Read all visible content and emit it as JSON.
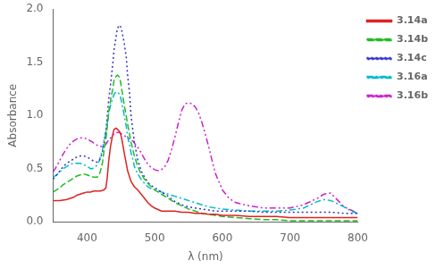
{
  "chart_data": {
    "type": "line",
    "xlabel": "λ (nm)",
    "ylabel": "Absorbance",
    "xlim": [
      350,
      800
    ],
    "ylim": [
      0.0,
      2.0
    ],
    "xticks": [
      400,
      500,
      600,
      700,
      800
    ],
    "yticks": [
      {
        "value": 0.0,
        "label": "0.0"
      },
      0.5,
      {
        "value": 1.0,
        "label": "1.0"
      },
      1.5,
      {
        "value": 2.0,
        "label": "2.0"
      }
    ],
    "grid": false,
    "legend": "upper right",
    "series": [
      {
        "name": "3.14a",
        "color": "#dd2222",
        "line_style": "solid",
        "x": [
          350,
          360,
          370,
          375,
          380,
          385,
          390,
          395,
          400,
          405,
          410,
          415,
          420,
          425,
          428,
          430,
          432,
          435,
          438,
          440,
          443,
          445,
          448,
          450,
          452,
          455,
          460,
          465,
          470,
          475,
          480,
          485,
          490,
          495,
          500,
          510,
          520,
          530,
          540,
          550,
          560,
          570,
          580,
          590,
          600,
          620,
          640,
          660,
          680,
          700,
          720,
          740,
          760,
          780,
          800
        ],
        "values": [
          0.2,
          0.2,
          0.21,
          0.22,
          0.23,
          0.25,
          0.26,
          0.27,
          0.28,
          0.28,
          0.29,
          0.29,
          0.29,
          0.3,
          0.32,
          0.42,
          0.57,
          0.72,
          0.82,
          0.87,
          0.88,
          0.87,
          0.85,
          0.82,
          0.76,
          0.65,
          0.48,
          0.38,
          0.33,
          0.3,
          0.26,
          0.22,
          0.18,
          0.15,
          0.13,
          0.1,
          0.1,
          0.1,
          0.09,
          0.09,
          0.08,
          0.08,
          0.07,
          0.07,
          0.06,
          0.06,
          0.05,
          0.05,
          0.05,
          0.04,
          0.04,
          0.04,
          0.04,
          0.04,
          0.04
        ]
      },
      {
        "name": "3.14b",
        "color": "#22bb22",
        "line_style": "dashed",
        "x": [
          350,
          360,
          365,
          370,
          375,
          380,
          385,
          390,
          395,
          400,
          405,
          410,
          415,
          418,
          420,
          423,
          425,
          428,
          430,
          432,
          435,
          438,
          440,
          443,
          445,
          448,
          450,
          452,
          455,
          460,
          465,
          470,
          475,
          480,
          485,
          490,
          495,
          500,
          505,
          510,
          515,
          520,
          525,
          530,
          540,
          550,
          560,
          570,
          580,
          590,
          600,
          620,
          640,
          660,
          680,
          700,
          720,
          740,
          760,
          780,
          800
        ],
        "values": [
          0.28,
          0.32,
          0.35,
          0.37,
          0.39,
          0.41,
          0.43,
          0.44,
          0.45,
          0.44,
          0.43,
          0.42,
          0.42,
          0.44,
          0.48,
          0.56,
          0.66,
          0.78,
          0.9,
          1.03,
          1.15,
          1.25,
          1.33,
          1.37,
          1.38,
          1.36,
          1.3,
          1.22,
          1.1,
          0.92,
          0.75,
          0.62,
          0.52,
          0.45,
          0.4,
          0.36,
          0.33,
          0.3,
          0.28,
          0.26,
          0.24,
          0.22,
          0.2,
          0.18,
          0.15,
          0.12,
          0.1,
          0.08,
          0.07,
          0.06,
          0.05,
          0.04,
          0.03,
          0.02,
          0.02,
          0.01,
          0.01,
          0.01,
          0.01,
          0.01,
          0.01
        ]
      },
      {
        "name": "3.14c",
        "color": "#3333cc",
        "line_style": "dotted",
        "x": [
          350,
          360,
          365,
          370,
          375,
          380,
          385,
          390,
          395,
          400,
          405,
          410,
          415,
          418,
          420,
          423,
          425,
          428,
          430,
          432,
          435,
          438,
          440,
          443,
          445,
          448,
          450,
          452,
          455,
          458,
          460,
          463,
          465,
          470,
          475,
          480,
          485,
          490,
          495,
          500,
          505,
          510,
          515,
          520,
          530,
          540,
          550,
          560,
          570,
          580,
          590,
          600,
          620,
          640,
          660,
          680,
          700,
          720,
          740,
          760,
          780,
          800
        ],
        "values": [
          0.4,
          0.48,
          0.52,
          0.55,
          0.57,
          0.59,
          0.61,
          0.62,
          0.62,
          0.61,
          0.59,
          0.57,
          0.56,
          0.57,
          0.6,
          0.66,
          0.74,
          0.86,
          1.0,
          1.15,
          1.3,
          1.48,
          1.62,
          1.74,
          1.82,
          1.85,
          1.83,
          1.78,
          1.68,
          1.55,
          1.38,
          1.2,
          1.0,
          0.75,
          0.58,
          0.48,
          0.42,
          0.37,
          0.34,
          0.32,
          0.3,
          0.28,
          0.26,
          0.24,
          0.19,
          0.16,
          0.14,
          0.13,
          0.12,
          0.11,
          0.1,
          0.1,
          0.1,
          0.1,
          0.09,
          0.09,
          0.09,
          0.09,
          0.09,
          0.09,
          0.08,
          0.08
        ]
      },
      {
        "name": "3.16a",
        "color": "#00bbcc",
        "line_style": "dashdot",
        "x": [
          350,
          355,
          360,
          365,
          370,
          375,
          380,
          385,
          390,
          395,
          400,
          403,
          405,
          408,
          410,
          413,
          415,
          418,
          420,
          423,
          425,
          428,
          430,
          432,
          435,
          438,
          440,
          443,
          445,
          448,
          450,
          452,
          455,
          458,
          460,
          463,
          465,
          468,
          470,
          475,
          480,
          485,
          490,
          495,
          500,
          505,
          510,
          515,
          520,
          525,
          530,
          535,
          540,
          545,
          550,
          560,
          570,
          580,
          590,
          600,
          620,
          640,
          660,
          680,
          700,
          720,
          730,
          740,
          750,
          760,
          770,
          780,
          790,
          800
        ],
        "values": [
          0.42,
          0.44,
          0.47,
          0.5,
          0.52,
          0.54,
          0.55,
          0.55,
          0.55,
          0.54,
          0.52,
          0.51,
          0.5,
          0.5,
          0.51,
          0.52,
          0.54,
          0.57,
          0.62,
          0.68,
          0.76,
          0.84,
          0.93,
          1.02,
          1.1,
          1.16,
          1.2,
          1.22,
          1.22,
          1.2,
          1.16,
          1.1,
          1.0,
          0.9,
          0.8,
          0.72,
          0.65,
          0.58,
          0.52,
          0.45,
          0.4,
          0.36,
          0.33,
          0.31,
          0.3,
          0.29,
          0.28,
          0.27,
          0.26,
          0.25,
          0.24,
          0.23,
          0.22,
          0.21,
          0.2,
          0.18,
          0.16,
          0.14,
          0.13,
          0.12,
          0.11,
          0.1,
          0.1,
          0.1,
          0.11,
          0.13,
          0.16,
          0.19,
          0.21,
          0.2,
          0.17,
          0.14,
          0.1,
          0.08
        ]
      },
      {
        "name": "3.16b",
        "color": "#cc22cc",
        "line_style": "dashdotdot",
        "x": [
          350,
          355,
          360,
          365,
          370,
          375,
          380,
          385,
          390,
          395,
          400,
          403,
          405,
          408,
          410,
          413,
          415,
          418,
          420,
          423,
          425,
          428,
          430,
          432,
          435,
          438,
          440,
          443,
          445,
          448,
          450,
          452,
          455,
          458,
          460,
          463,
          465,
          468,
          470,
          475,
          480,
          485,
          490,
          495,
          500,
          505,
          510,
          515,
          520,
          525,
          530,
          535,
          540,
          545,
          550,
          555,
          560,
          565,
          570,
          575,
          580,
          585,
          590,
          600,
          610,
          620,
          640,
          660,
          680,
          700,
          720,
          740,
          750,
          760,
          780,
          800
        ],
        "values": [
          0.47,
          0.52,
          0.58,
          0.64,
          0.69,
          0.73,
          0.76,
          0.78,
          0.79,
          0.79,
          0.78,
          0.77,
          0.76,
          0.75,
          0.74,
          0.73,
          0.72,
          0.71,
          0.71,
          0.71,
          0.72,
          0.73,
          0.75,
          0.77,
          0.79,
          0.81,
          0.83,
          0.84,
          0.84,
          0.84,
          0.83,
          0.82,
          0.81,
          0.8,
          0.79,
          0.78,
          0.77,
          0.76,
          0.74,
          0.7,
          0.65,
          0.59,
          0.54,
          0.51,
          0.49,
          0.48,
          0.49,
          0.52,
          0.58,
          0.68,
          0.8,
          0.93,
          1.05,
          1.11,
          1.12,
          1.11,
          1.08,
          1.02,
          0.93,
          0.82,
          0.7,
          0.57,
          0.45,
          0.3,
          0.22,
          0.18,
          0.15,
          0.13,
          0.13,
          0.13,
          0.16,
          0.22,
          0.26,
          0.27,
          0.14,
          0.08
        ]
      }
    ]
  }
}
